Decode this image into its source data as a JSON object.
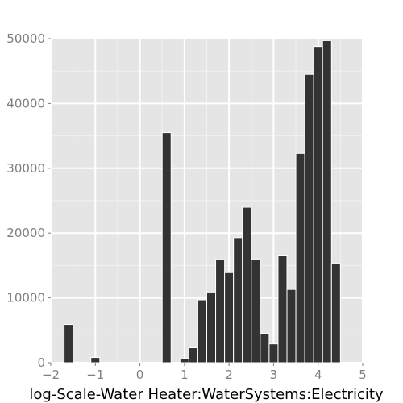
{
  "chart_data": {
    "type": "bar",
    "title": "",
    "xlabel": "log-Scale-Water Heater:WaterSystems:Electricity",
    "ylabel": "",
    "xlim": [
      -2,
      5
    ],
    "ylim": [
      0,
      50000
    ],
    "xticks": [
      "−2",
      "−1",
      "0",
      "1",
      "2",
      "3",
      "4",
      "5"
    ],
    "yticks": [
      "0",
      "10000",
      "20000",
      "30000",
      "40000",
      "50000"
    ],
    "grid": true,
    "bin_width": 0.2,
    "bins": [
      {
        "x": -1.6,
        "y": 5900
      },
      {
        "x": -1.4,
        "y": 100
      },
      {
        "x": -1.0,
        "y": 800
      },
      {
        "x": 0.6,
        "y": 35500
      },
      {
        "x": 1.0,
        "y": 600
      },
      {
        "x": 1.2,
        "y": 2300
      },
      {
        "x": 1.4,
        "y": 9700
      },
      {
        "x": 1.6,
        "y": 10900
      },
      {
        "x": 1.8,
        "y": 15900
      },
      {
        "x": 2.0,
        "y": 13900
      },
      {
        "x": 2.2,
        "y": 19300
      },
      {
        "x": 2.4,
        "y": 24000
      },
      {
        "x": 2.6,
        "y": 15900
      },
      {
        "x": 2.8,
        "y": 4500
      },
      {
        "x": 3.0,
        "y": 2900
      },
      {
        "x": 3.2,
        "y": 16600
      },
      {
        "x": 3.4,
        "y": 11300
      },
      {
        "x": 3.6,
        "y": 32300
      },
      {
        "x": 3.8,
        "y": 44500
      },
      {
        "x": 4.0,
        "y": 48800
      },
      {
        "x": 4.2,
        "y": 49700
      },
      {
        "x": 4.4,
        "y": 15300
      }
    ],
    "colors": {
      "panel_background": "#e5e5e5",
      "major_grid": "#ffffff",
      "minor_grid": "#f2f2f2",
      "bar_fill": "#333333",
      "bar_outline": "#ffffff"
    }
  }
}
